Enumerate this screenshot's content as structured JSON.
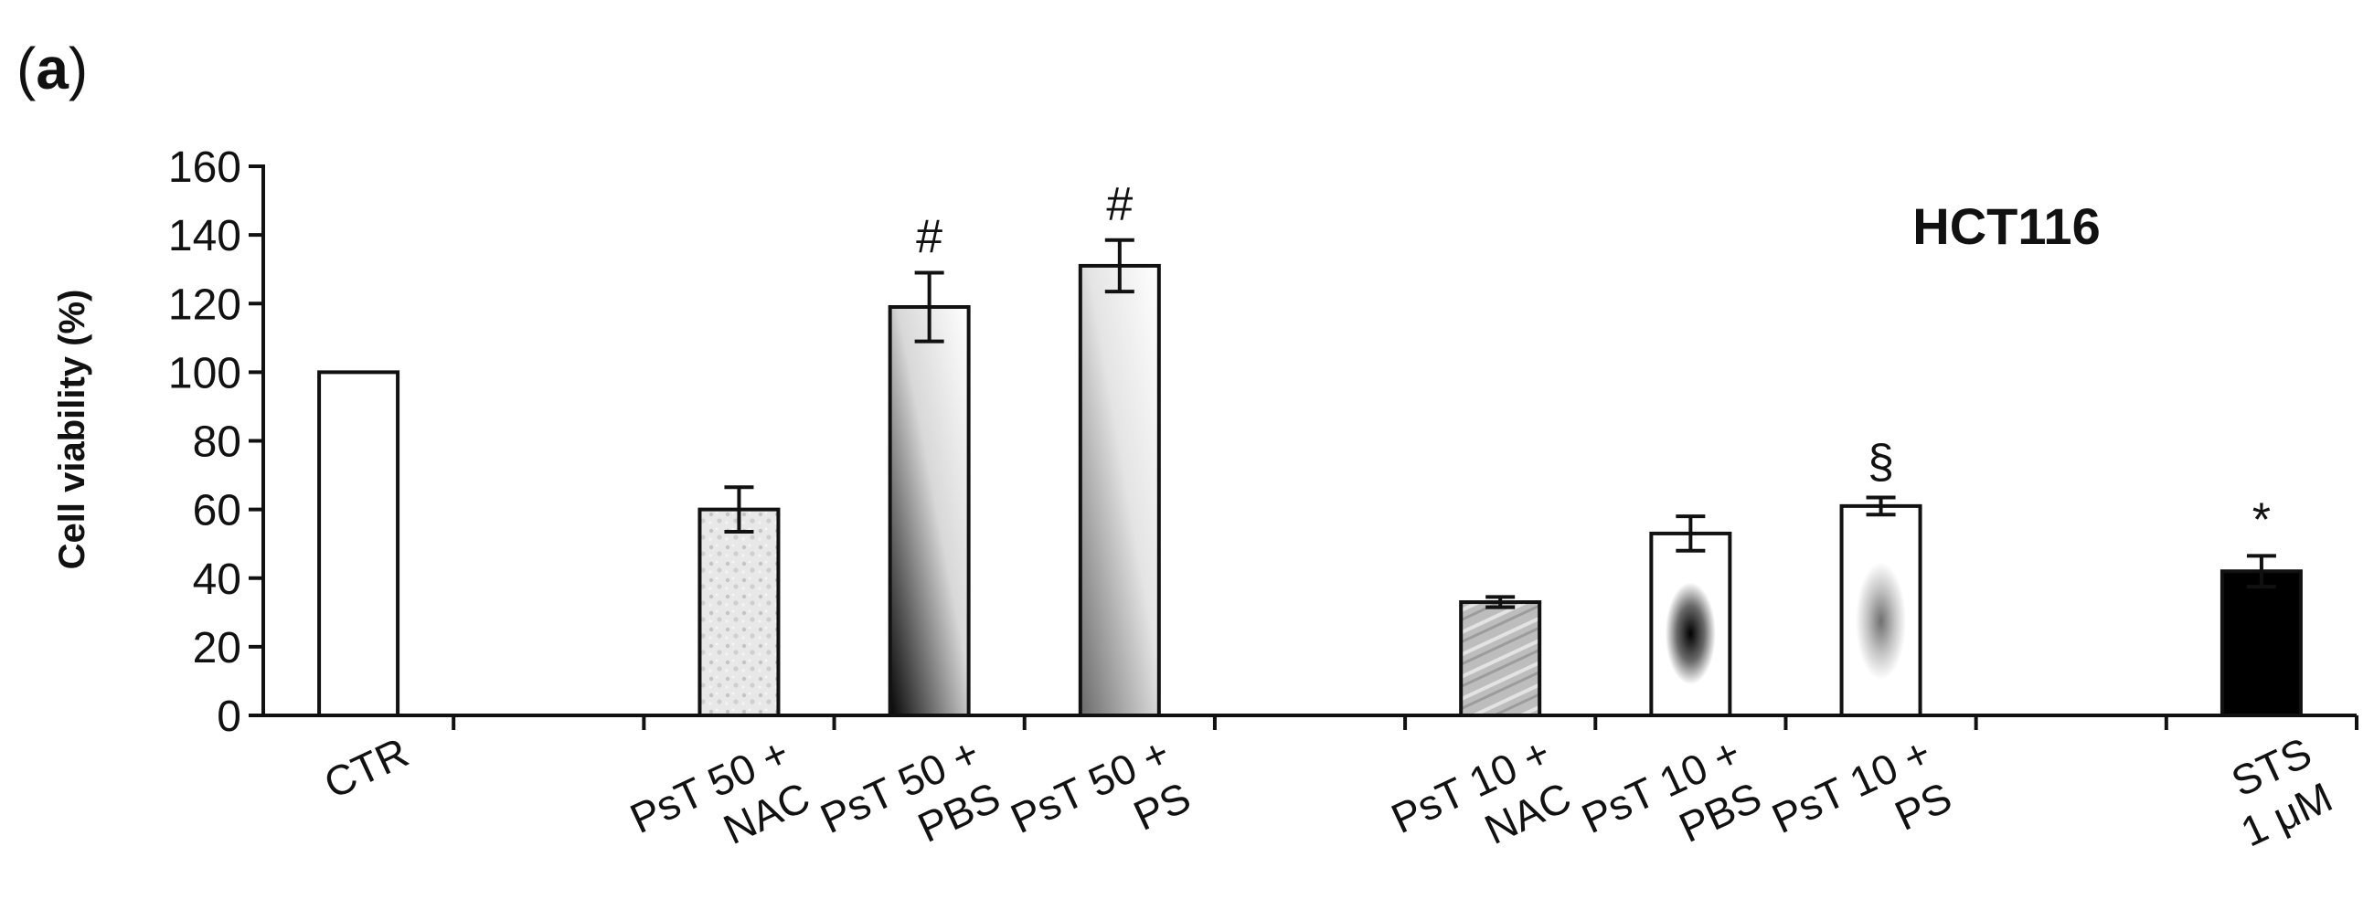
{
  "panel_label": {
    "open": "(",
    "letter": "a",
    "close": ")"
  },
  "chart_data": {
    "type": "bar",
    "title": "HCT116",
    "xlabel": "",
    "ylabel": "Cell viability (%)",
    "ylim": [
      0,
      160
    ],
    "yticks": [
      0,
      20,
      40,
      60,
      80,
      100,
      120,
      140,
      160
    ],
    "grid": false,
    "legend": "none",
    "category_slots": 11,
    "categories": [
      {
        "slot": 0,
        "lines": [
          "CTR"
        ]
      },
      {
        "slot": 2,
        "lines": [
          "PsT 50 +",
          "NAC"
        ]
      },
      {
        "slot": 3,
        "lines": [
          "PsT 50 +",
          "PBS"
        ]
      },
      {
        "slot": 4,
        "lines": [
          "PsT 50  +",
          "PS"
        ]
      },
      {
        "slot": 6,
        "lines": [
          "PsT 10 +",
          "NAC"
        ]
      },
      {
        "slot": 7,
        "lines": [
          "PsT 10 +",
          "PBS"
        ]
      },
      {
        "slot": 8,
        "lines": [
          "PsT 10  +",
          "PS"
        ]
      },
      {
        "slot": 10,
        "lines": [
          "STS",
          "1 μM"
        ]
      }
    ],
    "bars": [
      {
        "slot": 0,
        "value": 100,
        "error": null,
        "fill": "white",
        "annotation": ""
      },
      {
        "slot": 2,
        "value": 60,
        "error": 6.5,
        "fill": "light-texture",
        "annotation": ""
      },
      {
        "slot": 3,
        "value": 119,
        "error": 10,
        "fill": "dark-gradient",
        "annotation": "#"
      },
      {
        "slot": 4,
        "value": 131,
        "error": 7.5,
        "fill": "gray-gradient",
        "annotation": "#"
      },
      {
        "slot": 6,
        "value": 33,
        "error": 1.5,
        "fill": "gray-texture",
        "annotation": ""
      },
      {
        "slot": 7,
        "value": 53,
        "error": 5,
        "fill": "dark-spot",
        "annotation": ""
      },
      {
        "slot": 8,
        "value": 61,
        "error": 2.5,
        "fill": "light-spot",
        "annotation": "§"
      },
      {
        "slot": 10,
        "value": 42,
        "error": 4.5,
        "fill": "black",
        "annotation": "*"
      }
    ],
    "colors": {
      "axis": "#111111",
      "bar_stroke": "#111111",
      "black_bar": "#000000"
    }
  }
}
